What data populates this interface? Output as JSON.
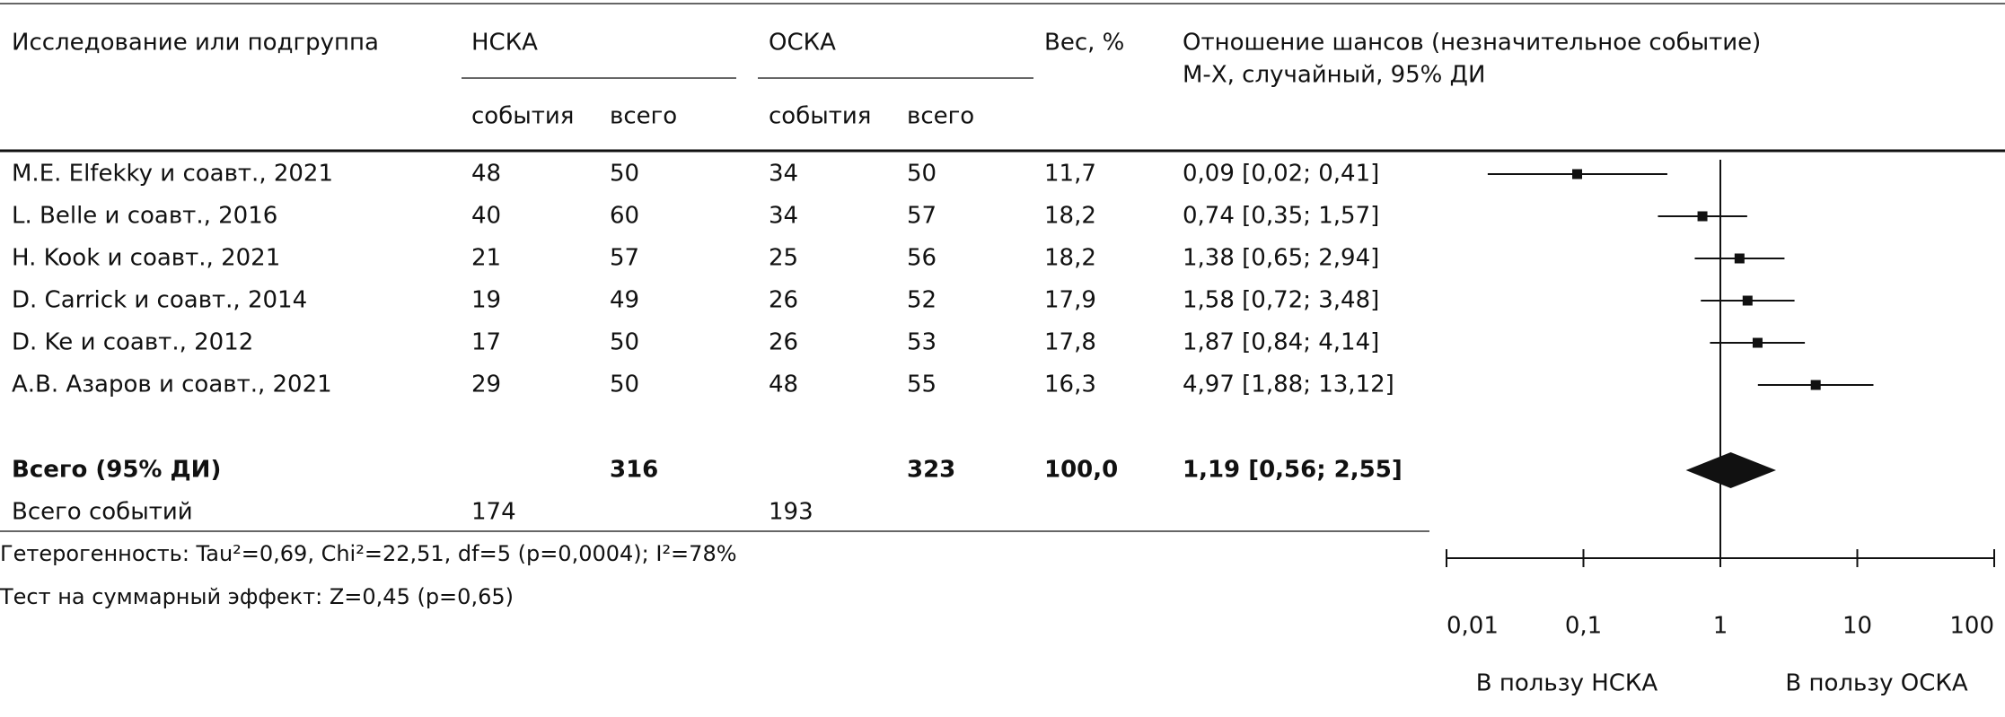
{
  "chart_data": {
    "type": "forest",
    "headers": {
      "study": "Исследование или подгруппа",
      "group1": "НСКА",
      "group2": "ОСКА",
      "events": "события",
      "total": "всего",
      "weight": "Вес, %",
      "effect": "Отношение шансов (незначительное событие)",
      "method": "М-Х, случайный, 95% ДИ"
    },
    "rows": [
      {
        "study": "M.E. Elfekky и соавт., 2021",
        "events1": 48,
        "total1": 50,
        "events2": 34,
        "total2": 50,
        "weight": "11,7",
        "or": 0.09,
        "ci": [
          0.02,
          0.41
        ],
        "label": "0,09 [0,02; 0,41]"
      },
      {
        "study": "L. Belle и соавт., 2016",
        "events1": 40,
        "total1": 60,
        "events2": 34,
        "total2": 57,
        "weight": "18,2",
        "or": 0.74,
        "ci": [
          0.35,
          1.57
        ],
        "label": "0,74 [0,35; 1,57]"
      },
      {
        "study": "H. Kook и соавт., 2021",
        "events1": 21,
        "total1": 57,
        "events2": 25,
        "total2": 56,
        "weight": "18,2",
        "or": 1.38,
        "ci": [
          0.65,
          2.94
        ],
        "label": "1,38 [0,65; 2,94]"
      },
      {
        "study": "D. Carrick и соавт., 2014",
        "events1": 19,
        "total1": 49,
        "events2": 26,
        "total2": 52,
        "weight": "17,9",
        "or": 1.58,
        "ci": [
          0.72,
          3.48
        ],
        "label": "1,58 [0,72; 3,48]"
      },
      {
        "study": "D. Ke и соавт., 2012",
        "events1": 17,
        "total1": 50,
        "events2": 26,
        "total2": 53,
        "weight": "17,8",
        "or": 1.87,
        "ci": [
          0.84,
          4.14
        ],
        "label": "1,87 [0,84; 4,14]"
      },
      {
        "study": "А.В. Азаров и соавт., 2021",
        "events1": 29,
        "total1": 50,
        "events2": 48,
        "total2": 55,
        "weight": "16,3",
        "or": 4.97,
        "ci": [
          1.88,
          13.12
        ],
        "label": "4,97 [1,88; 13,12]"
      }
    ],
    "overall": {
      "study": "Всего (95% ДИ)",
      "total1": 316,
      "total2": 323,
      "weight": "100,0",
      "or": 1.19,
      "ci": [
        0.56,
        2.55
      ],
      "label": "1,19 [0,56; 2,55]"
    },
    "events_total": {
      "study": "Всего событий",
      "events1": 174,
      "events2": 193
    },
    "heterogeneity": "Гетерогенность: Tau²=0,69, Chi²=22,51, df=5 (p=0,0004); I²=78%",
    "test": "Тест на суммарный эффект: Z=0,45 (p=0,65)",
    "xscale": "log",
    "xlim": [
      0.01,
      100
    ],
    "xticks": [
      {
        "value": 0.01,
        "label": "0,01"
      },
      {
        "value": 0.1,
        "label": "0,1"
      },
      1,
      10,
      100
    ],
    "favors": [
      "В пользу НСКА",
      "В пользу ОСКА"
    ]
  }
}
